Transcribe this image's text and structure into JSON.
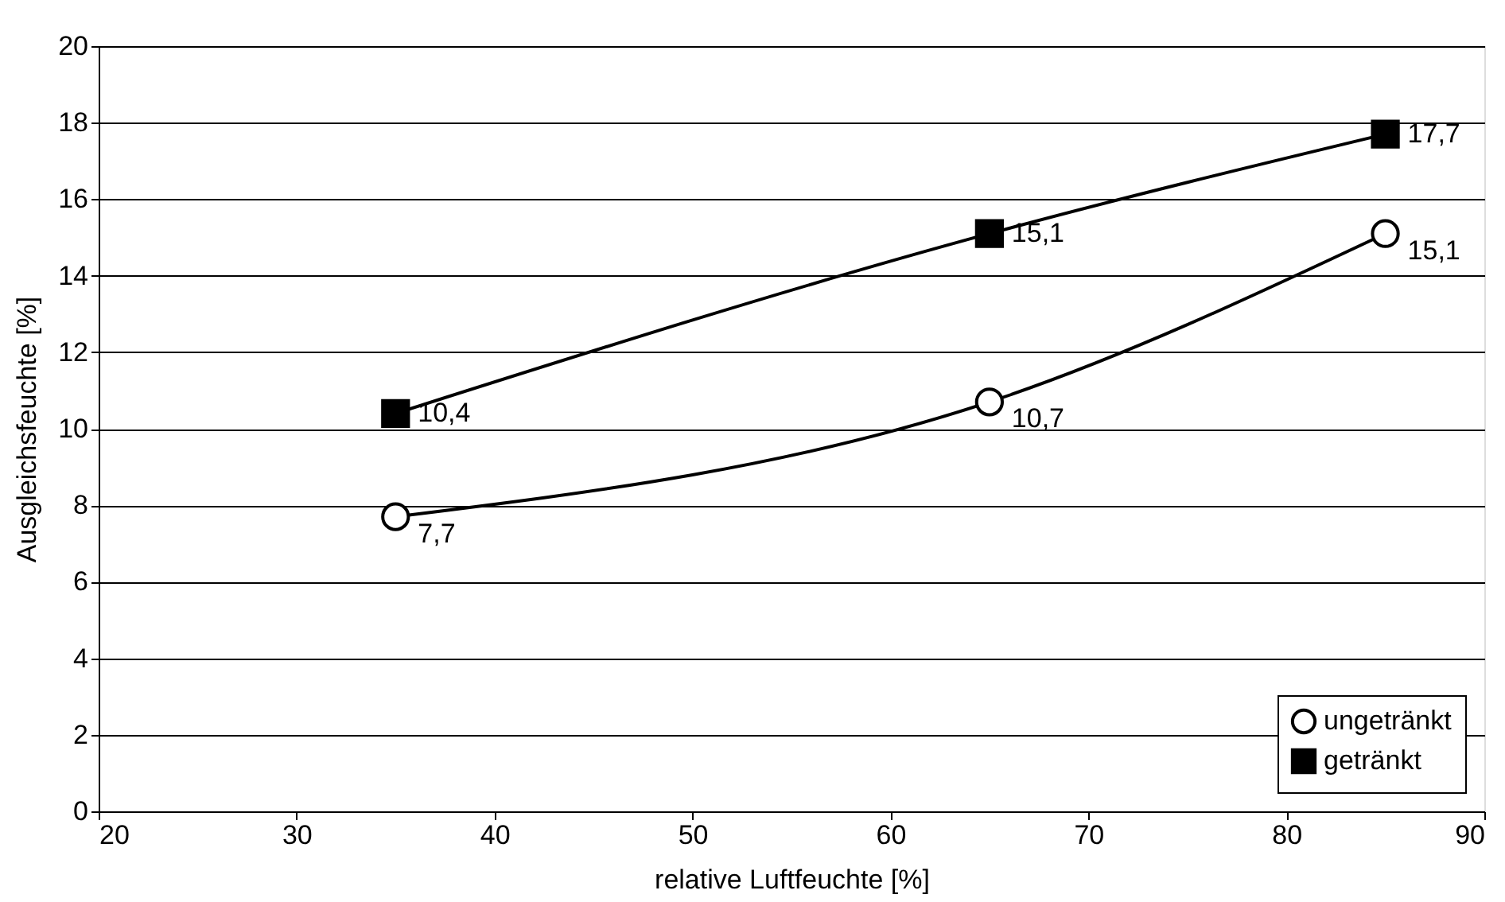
{
  "chart_data": {
    "type": "line",
    "xlabel": "relative Luftfeuchte [%]",
    "ylabel": "Ausgleichsfeuchte [%]",
    "x": [
      35,
      65,
      85
    ],
    "series": [
      {
        "name": "ungetränkt",
        "color": "#000000",
        "marker": "circle",
        "values": [
          7.7,
          10.7,
          15.1
        ],
        "value_labels": [
          "7,7",
          "10,7",
          "15,1"
        ]
      },
      {
        "name": "getränkt",
        "color": "#000000",
        "marker": "square",
        "values": [
          10.4,
          15.1,
          17.7
        ],
        "value_labels": [
          "10,4",
          "15,1",
          "17,7"
        ]
      }
    ],
    "xlim": [
      20,
      90
    ],
    "xticks": [
      20,
      30,
      40,
      50,
      60,
      70,
      80,
      90
    ],
    "ylim": [
      0,
      20
    ],
    "yticks": [
      0,
      2,
      4,
      6,
      8,
      10,
      12,
      14,
      16,
      18,
      20
    ],
    "grid": "y",
    "legend": "bottom right",
    "line_style": "solid"
  }
}
